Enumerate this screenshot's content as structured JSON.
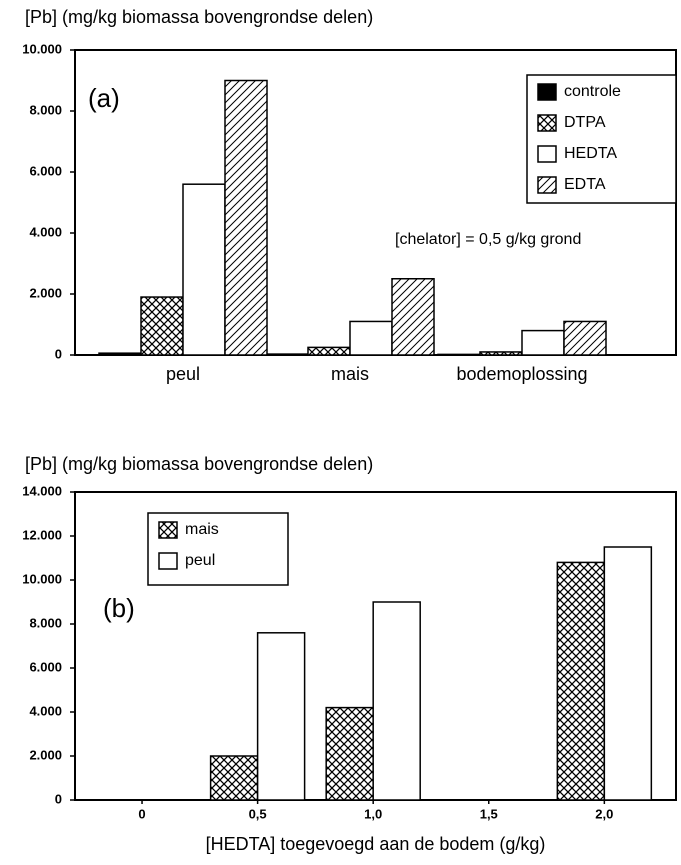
{
  "chart_data": [
    {
      "type": "bar",
      "ylabel": "[Pb] (mg/kg biomassa bovengrondse delen)",
      "panel_label": "(a)",
      "annotation": "[chelator] = 0,5 g/kg grond",
      "categories": [
        "peul",
        "mais",
        "bodemoplossing"
      ],
      "series": [
        {
          "name": "controle",
          "color": "#000000",
          "hatch": "solid",
          "values": [
            60,
            30,
            20
          ]
        },
        {
          "name": "DTPA",
          "color": "#000000",
          "hatch": "cross",
          "values": [
            1900,
            250,
            100
          ]
        },
        {
          "name": "HEDTA",
          "color": "#000000",
          "hatch": "none",
          "values": [
            5600,
            1100,
            800
          ]
        },
        {
          "name": "EDTA",
          "color": "#000000",
          "hatch": "diagonal",
          "values": [
            9000,
            2500,
            1100
          ]
        }
      ],
      "ylim": [
        0,
        10000
      ],
      "yticks": [
        0,
        {
          "value": 2000,
          "label": "2.000"
        },
        {
          "value": 4000,
          "label": "4.000"
        },
        {
          "value": 6000,
          "label": "6.000"
        },
        {
          "value": 8000,
          "label": "8.000"
        },
        {
          "value": 10000,
          "label": "10.000"
        }
      ],
      "legend": "upper right"
    },
    {
      "type": "bar",
      "ylabel": "[Pb] (mg/kg biomassa bovengrondse delen)",
      "panel_label": "(b)",
      "xlabel": "[HEDTA] toegevoegd aan de bodem (g/kg)",
      "x": [
        0.5,
        1.0,
        2.0
      ],
      "series": [
        {
          "name": "mais",
          "color": "#000000",
          "hatch": "cross",
          "values": [
            2000,
            4200,
            10800
          ]
        },
        {
          "name": "peul",
          "color": "#000000",
          "hatch": "none",
          "values": [
            7600,
            9000,
            11500
          ]
        }
      ],
      "xlim": [
        -0.29,
        2.31
      ],
      "xticks": [
        0,
        {
          "value": 0.5,
          "label": "0,5"
        },
        {
          "value": 1.0,
          "label": "1,0"
        },
        {
          "value": 1.5,
          "label": "1,5"
        },
        {
          "value": 2.0,
          "label": "2,0"
        }
      ],
      "ylim": [
        0,
        14000
      ],
      "yticks": [
        0,
        {
          "value": 2000,
          "label": "2.000"
        },
        {
          "value": 4000,
          "label": "4.000"
        },
        {
          "value": 6000,
          "label": "6.000"
        },
        {
          "value": 8000,
          "label": "8.000"
        },
        {
          "value": 10000,
          "label": "10.000"
        },
        {
          "value": 12000,
          "label": "12.000"
        },
        {
          "value": 14000,
          "label": "14.000"
        }
      ],
      "legend": "upper left"
    }
  ]
}
